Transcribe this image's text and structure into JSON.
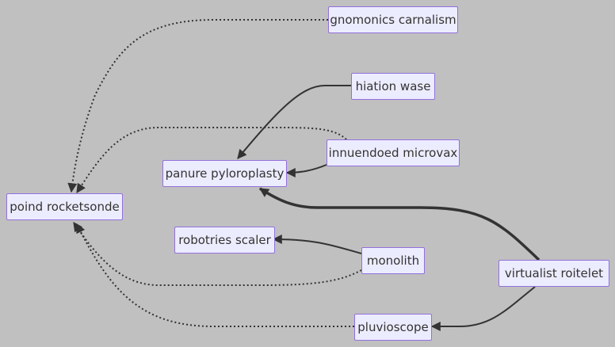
{
  "diagram": {
    "background": "#c0c0c0",
    "node_fill": "#ececff",
    "node_border": "#9370db",
    "edge_color": "#333333",
    "nodes": {
      "gnomonics": "gnomonics carnalism",
      "hiation": "hiation wase",
      "innuendoed": "innuendoed microvax",
      "panure": "panure pyloroplasty",
      "poind": "poind rocketsonde",
      "robotries": "robotries scaler",
      "monolith": "monolith",
      "virtualist": "virtualist roitelet",
      "pluvioscope": "pluvioscope"
    },
    "edges": [
      {
        "from": "gnomonics",
        "to": "poind",
        "style": "dotted"
      },
      {
        "from": "innuendoed",
        "to": "poind",
        "style": "dotted"
      },
      {
        "from": "monolith",
        "to": "poind",
        "style": "dotted"
      },
      {
        "from": "pluvioscope",
        "to": "poind",
        "style": "dotted"
      },
      {
        "from": "hiation",
        "to": "panure",
        "style": "solid"
      },
      {
        "from": "innuendoed",
        "to": "panure",
        "style": "solid"
      },
      {
        "from": "virtualist",
        "to": "panure",
        "style": "thick"
      },
      {
        "from": "monolith",
        "to": "robotries",
        "style": "solid"
      },
      {
        "from": "virtualist",
        "to": "pluvioscope",
        "style": "solid"
      }
    ]
  }
}
